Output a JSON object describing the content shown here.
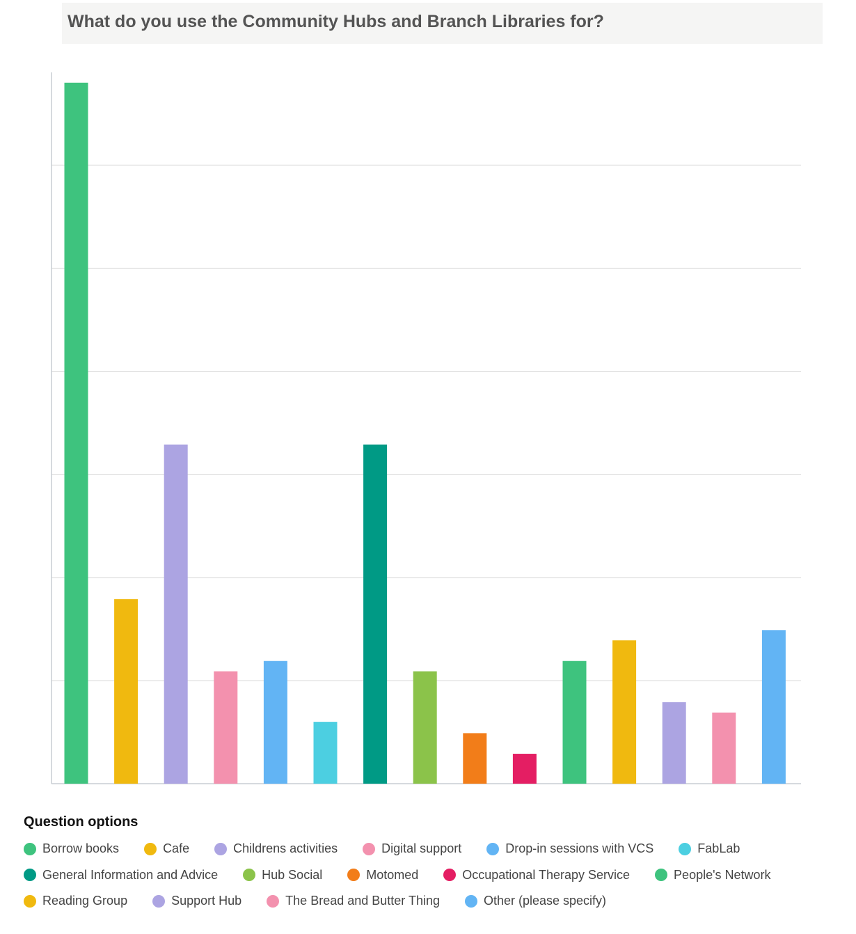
{
  "title": "What do you use the Community Hubs and Branch Libraries for?",
  "legend": {
    "title": "Question options"
  },
  "chart_data": {
    "type": "bar",
    "title": "What do you use the Community Hubs and Branch Libraries for?",
    "xlabel": "",
    "ylabel": "",
    "categories": [
      "Borrow books",
      "Cafe",
      "Childrens activities",
      "Digital support",
      "Drop-in sessions with VCS",
      "FabLab",
      "General Information and Advice",
      "Hub Social",
      "Motomed",
      "Occupational Therapy Service",
      "People's Network",
      "Reading Group",
      "Support Hub",
      "The Bread and Butter Thing",
      "Other (please specify)"
    ],
    "values": [
      68,
      17.9,
      32.9,
      10.9,
      11.9,
      6,
      32.9,
      10.9,
      4.9,
      2.9,
      11.9,
      13.9,
      7.9,
      6.9,
      14.9
    ],
    "colors": [
      "#3ec37e",
      "#f0b90f",
      "#aca4e2",
      "#f391ae",
      "#62b4f4",
      "#4ccfe1",
      "#009a85",
      "#8bc34a",
      "#f27d19",
      "#e41e63",
      "#3ec37e",
      "#f0b90f",
      "#aca4e2",
      "#f391ae",
      "#62b4f4"
    ],
    "ylim": [
      0,
      69
    ],
    "gridlines": [
      10,
      20,
      30,
      40,
      50,
      60
    ],
    "grid": true,
    "legend_position": "bottom"
  }
}
